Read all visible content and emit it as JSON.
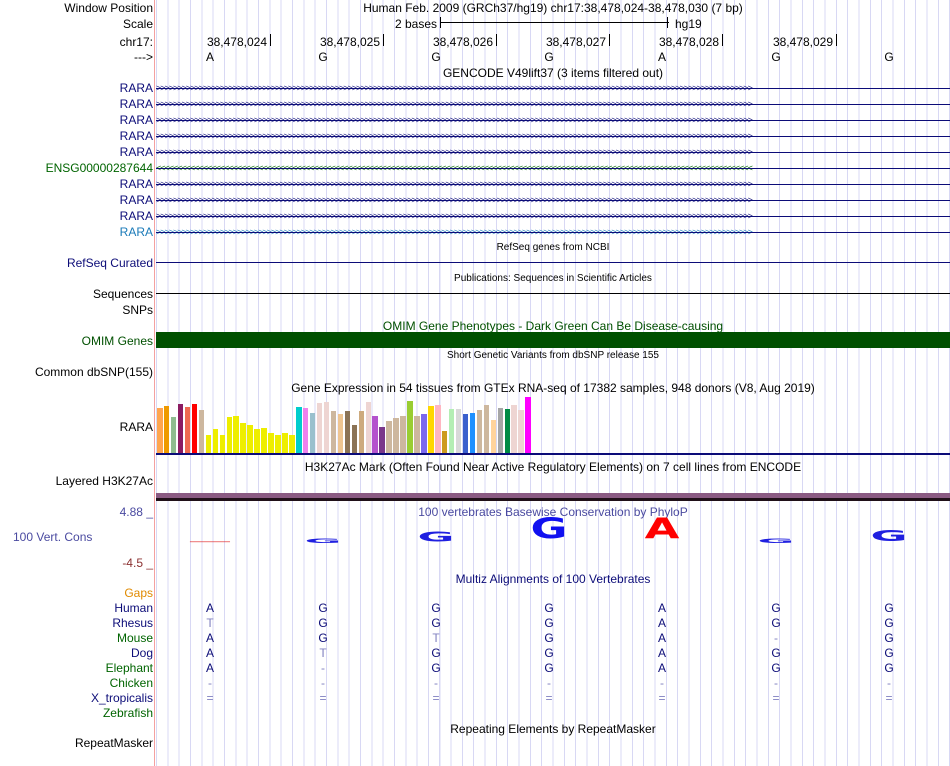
{
  "header": {
    "window_position_label": "Window Position",
    "window_position": "Human Feb. 2009 (GRCh37/hg19)   chr17:38,478,024-38,478,030 (7 bp)",
    "scale_label": "Scale",
    "scale_text": "2 bases",
    "scale_db": "hg19",
    "chrom_label": "chr17:",
    "strand_label": "--->",
    "positions": [
      "38,478,024",
      "38,478,025",
      "38,478,026",
      "38,478,027",
      "38,478,028",
      "38,478,029"
    ],
    "bases": [
      "A",
      "G",
      "G",
      "G",
      "A",
      "G",
      "G"
    ]
  },
  "gencode": {
    "title": "GENCODE V49lift37 (3 items filtered out)",
    "genes": [
      {
        "label": "RARA",
        "dir": ">",
        "color": "#0c0c78"
      },
      {
        "label": "RARA",
        "dir": ">",
        "color": "#0c0c78"
      },
      {
        "label": "RARA",
        "dir": ">",
        "color": "#0c0c78"
      },
      {
        "label": "RARA",
        "dir": ">",
        "color": "#0c0c78"
      },
      {
        "label": "RARA",
        "dir": ">",
        "color": "#0c0c78"
      },
      {
        "label": "ENSG00000287644",
        "dir": "<",
        "color": "#006400"
      },
      {
        "label": "RARA",
        "dir": ">",
        "color": "#0c0c78"
      },
      {
        "label": "RARA",
        "dir": ">",
        "color": "#0c0c78"
      },
      {
        "label": "RARA",
        "dir": ">",
        "color": "#0c0c78"
      },
      {
        "label": "RARA",
        "dir": ">",
        "color": "#1a7ab8"
      }
    ]
  },
  "refseq": {
    "title": "RefSeq genes from NCBI",
    "label": "RefSeq Curated"
  },
  "publications": {
    "title": "Publications: Sequences in Scientific Articles",
    "label": "Sequences"
  },
  "snps": {
    "label": "SNPs"
  },
  "omim": {
    "title": "OMIM Gene Phenotypes - Dark Green Can Be Disease-causing",
    "label": "OMIM Genes",
    "color": "#005000"
  },
  "dbsnp": {
    "title": "Short Genetic Variants from dbSNP release 155",
    "label": "Common dbSNP(155)"
  },
  "gtex": {
    "title": "Gene Expression in 54 tissues from GTEx RNA-seq of 17382 samples, 948 donors (V8, Aug 2019)",
    "label": "RARA",
    "relative_expression": [
      0.81,
      0.84,
      0.65,
      0.88,
      0.82,
      0.88,
      0.77,
      0.33,
      0.42,
      0.33,
      0.65,
      0.66,
      0.54,
      0.5,
      0.42,
      0.45,
      0.35,
      0.32,
      0.35,
      0.33,
      0.82,
      0.81,
      0.72,
      0.89,
      0.91,
      0.75,
      0.7,
      0.75,
      0.5,
      0.75,
      0.91,
      0.66,
      0.47,
      0.58,
      0.63,
      0.66,
      0.93,
      0.66,
      0.7,
      0.84,
      0.86,
      0.4,
      0.79,
      0.79,
      0.7,
      0.72,
      0.77,
      0.86,
      0.59,
      0.81,
      0.79,
      0.86,
      0.77,
      1.0
    ],
    "colors": [
      "#ffa54f",
      "#ee9a00",
      "#8fbc8f",
      "#8b1c62",
      "#ee6a50",
      "#ff0000",
      "#cdb79e",
      "#eeee00",
      "#eeee00",
      "#eeee00",
      "#eeee00",
      "#eeee00",
      "#eeee00",
      "#eeee00",
      "#eeee00",
      "#eeee00",
      "#eeee00",
      "#eeee00",
      "#eeee00",
      "#eeee00",
      "#00cdcd",
      "#ee82ee",
      "#9ac0cd",
      "#eed5d2",
      "#eed5d2",
      "#cdb79e",
      "#eec591",
      "#8b7355",
      "#8b7355",
      "#cdaa7d",
      "#eed5d2",
      "#b452cd",
      "#7a378b",
      "#cdb79e",
      "#cdb79e",
      "#cdb79e",
      "#9acd32",
      "#cdb79e",
      "#7b68ee",
      "#ffd700",
      "#ffb6c1",
      "#cd9b1d",
      "#b4eeb4",
      "#d9d9d9",
      "#3a5fcd",
      "#1e90ff",
      "#cdb79e",
      "#cdb79e",
      "#ffd39b",
      "#a6a6a6",
      "#008b45",
      "#eed5d2",
      "#eed5d2",
      "#ff00ff"
    ]
  },
  "h3k27ac": {
    "title": "H3K27Ac Mark (Often Found Near Active Regulatory Elements) on 7 cell lines from ENCODE",
    "label": "Layered H3K27Ac"
  },
  "phylop": {
    "title": "100 vertebrates Basewise Conservation by PhyloP",
    "label": "100 Vert. Cons",
    "max": "4.88 _",
    "min": "-4.5 _",
    "letters": [
      {
        "b": "—",
        "color": "#e02020",
        "scale": 0.15
      },
      {
        "b": "G",
        "color": "#2020e0",
        "scale": 0.2
      },
      {
        "b": "G",
        "color": "#2020e0",
        "scale": 0.45
      },
      {
        "b": "G",
        "color": "#1010f0",
        "scale": 0.95
      },
      {
        "b": "A",
        "color": "#ff0000",
        "scale": 0.95
      },
      {
        "b": "G",
        "color": "#2020e0",
        "scale": 0.2
      },
      {
        "b": "G",
        "color": "#2020e0",
        "scale": 0.5
      }
    ]
  },
  "multiz": {
    "title": "Multiz Alignments of 100 Vertebrates",
    "gaps_label": "Gaps",
    "species": [
      {
        "name": "Human",
        "color": "#0c0c78",
        "seq": [
          "A",
          "G",
          "G",
          "G",
          "A",
          "G",
          "G"
        ]
      },
      {
        "name": "Rhesus",
        "color": "#0c0c78",
        "seq": [
          "T",
          "G",
          "G",
          "G",
          "A",
          "G",
          "G"
        ]
      },
      {
        "name": "Mouse",
        "color": "#006400",
        "seq": [
          "A",
          "G",
          "T",
          "G",
          "A",
          "-",
          "G"
        ]
      },
      {
        "name": "Dog",
        "color": "#0c0c78",
        "seq": [
          "A",
          "T",
          "G",
          "G",
          "A",
          "G",
          "G"
        ]
      },
      {
        "name": "Elephant",
        "color": "#006400",
        "seq": [
          "A",
          "-",
          "G",
          "G",
          "A",
          "G",
          "G"
        ]
      },
      {
        "name": "Chicken",
        "color": "#006400",
        "seq": [
          "-",
          "-",
          "-",
          "-",
          "-",
          "-",
          "-"
        ]
      },
      {
        "name": "X_tropicalis",
        "color": "#0c0c78",
        "seq": [
          "=",
          "=",
          "=",
          "=",
          "=",
          "=",
          "="
        ]
      },
      {
        "name": "Zebrafish",
        "color": "#006400",
        "seq": []
      }
    ]
  },
  "repeatmasker": {
    "title": "Repeating Elements by RepeatMasker",
    "label": "RepeatMasker"
  }
}
